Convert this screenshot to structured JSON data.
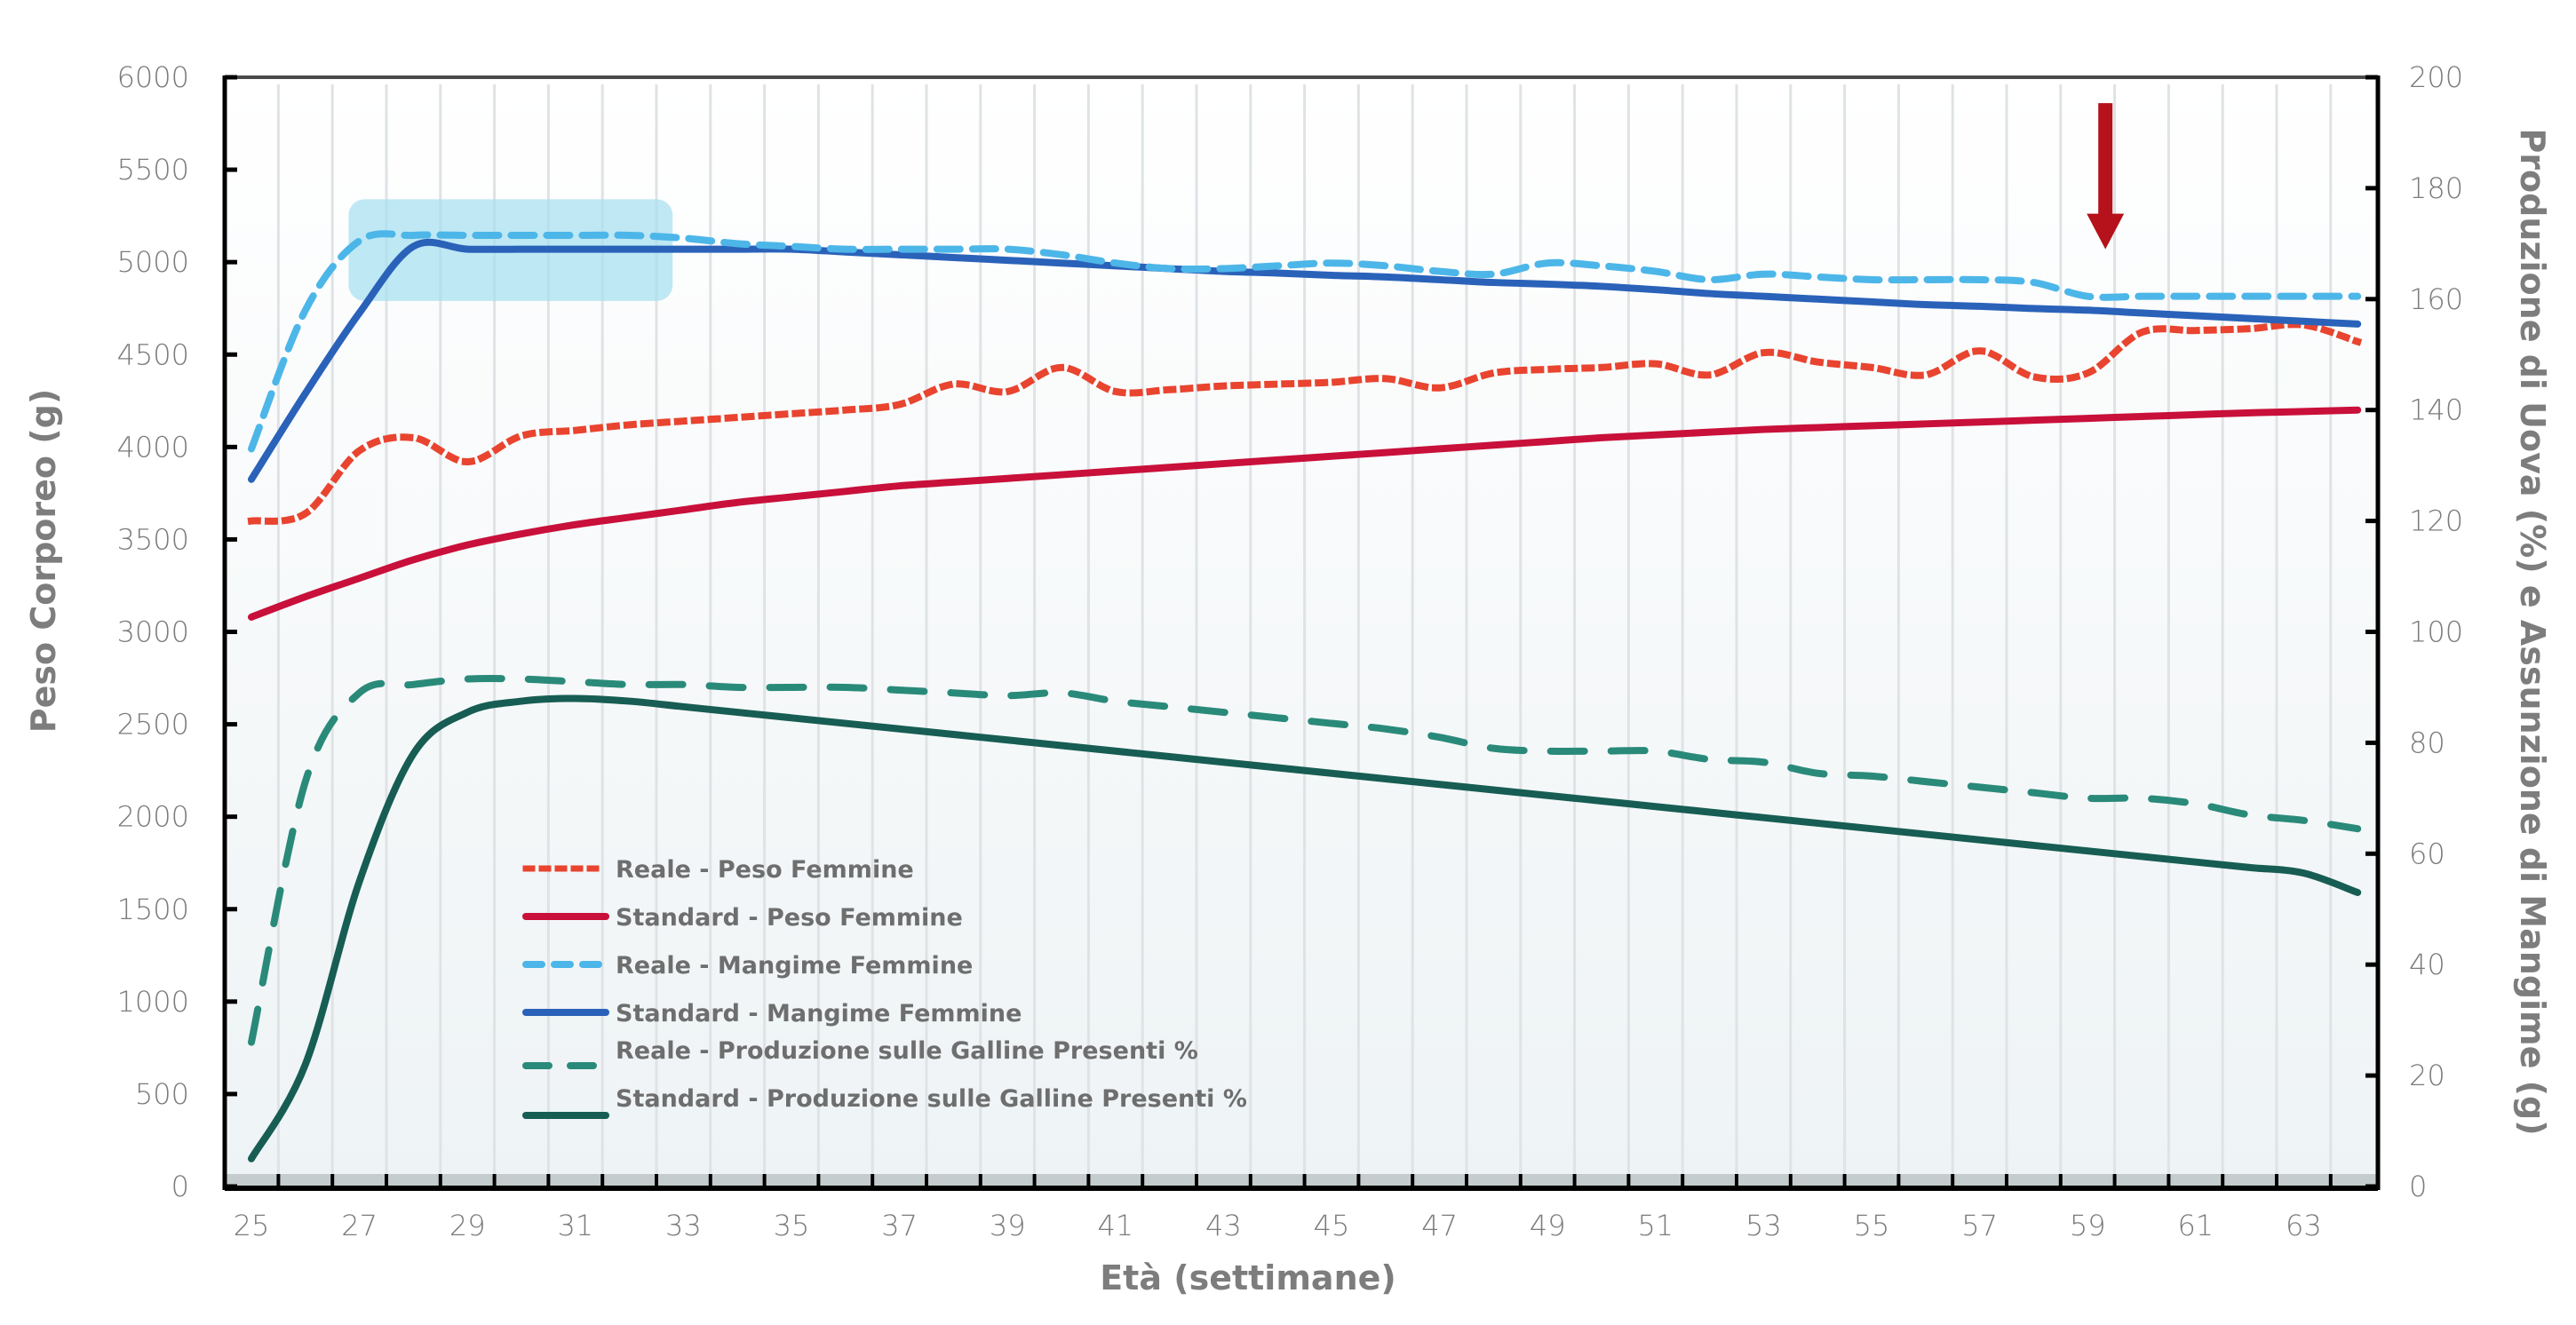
{
  "chart_data": {
    "type": "line",
    "title": "",
    "xlabel": "Età (settimane)",
    "ylabel_left": "Peso Corporeo (g)",
    "ylabel_right": "Produzione di Uova (%) e Assunzione di Mangime (g)",
    "xlim": [
      24.5,
      65
    ],
    "ylim_left": [
      0,
      6000
    ],
    "ylim_right": [
      0,
      200
    ],
    "x_ticks": [
      25,
      27,
      29,
      31,
      33,
      35,
      37,
      39,
      41,
      43,
      45,
      47,
      49,
      51,
      53,
      55,
      57,
      59,
      61,
      63
    ],
    "y_ticks_left": [
      0,
      500,
      1000,
      1500,
      2000,
      2500,
      3000,
      3500,
      4000,
      4500,
      5000,
      5500,
      6000
    ],
    "y_ticks_right": [
      0,
      20,
      40,
      60,
      80,
      100,
      120,
      140,
      160,
      180,
      200
    ],
    "grid": "vertical",
    "legend_position": "lower-left",
    "x": [
      25,
      26,
      27,
      28,
      29,
      30,
      31,
      32,
      33,
      34,
      35,
      36,
      37,
      38,
      39,
      40,
      41,
      42,
      43,
      44,
      45,
      46,
      47,
      48,
      49,
      50,
      51,
      52,
      53,
      54,
      55,
      56,
      57,
      58,
      59,
      60,
      61,
      62,
      63,
      64
    ],
    "series": [
      {
        "name": "Reale - Peso Femmine",
        "axis": "left",
        "style": "dotted",
        "color": "#e8442f",
        "values": [
          3600,
          3640,
          3980,
          4050,
          3920,
          4060,
          4090,
          4120,
          4140,
          4160,
          4180,
          4200,
          4230,
          4340,
          4300,
          4430,
          4300,
          4310,
          4330,
          4340,
          4350,
          4370,
          4320,
          4400,
          4420,
          4430,
          4450,
          4390,
          4510,
          4460,
          4430,
          4390,
          4520,
          4380,
          4400,
          4620,
          4630,
          4640,
          4660,
          4570
        ]
      },
      {
        "name": "Standard - Peso Femmine",
        "axis": "left",
        "style": "solid",
        "color": "#c8103a",
        "values": [
          3080,
          3190,
          3290,
          3390,
          3470,
          3530,
          3580,
          3620,
          3660,
          3700,
          3730,
          3760,
          3790,
          3810,
          3830,
          3850,
          3870,
          3890,
          3910,
          3930,
          3950,
          3970,
          3990,
          4010,
          4030,
          4050,
          4065,
          4080,
          4095,
          4105,
          4115,
          4125,
          4135,
          4145,
          4155,
          4165,
          4175,
          4185,
          4192,
          4200
        ]
      },
      {
        "name": "Reale - Mangime Femmine",
        "axis": "right",
        "style": "dashed",
        "color": "#4db6e8",
        "values": [
          133,
          158,
          170.5,
          171.5,
          171.5,
          171.5,
          171.5,
          171.5,
          171,
          170,
          169.5,
          169,
          169,
          169,
          169,
          168,
          166.5,
          165.5,
          165.5,
          166,
          166.5,
          166,
          165,
          164.5,
          166.5,
          166,
          165,
          163.5,
          164.5,
          164,
          163.5,
          163.5,
          163.5,
          163,
          160.5,
          160.5,
          160.5,
          160.5,
          160.5,
          160.5
        ]
      },
      {
        "name": "Standard - Mangime Femmine",
        "axis": "right",
        "style": "solid",
        "color": "#2a62b9",
        "values": [
          127.5,
          143,
          157.5,
          169.5,
          169,
          169,
          169,
          169,
          169,
          169,
          169,
          168.5,
          168,
          167.5,
          167,
          166.5,
          166,
          165.5,
          165,
          164.7,
          164.3,
          164,
          163.5,
          163,
          162.7,
          162.3,
          161.7,
          161,
          160.5,
          160,
          159.5,
          159,
          158.7,
          158.3,
          158,
          157.5,
          157,
          156.5,
          156,
          155.5
        ]
      },
      {
        "name": "Reale - Produzione sulle Galline Presenti %",
        "axis": "right",
        "style": "longdash",
        "color": "#2a8a7a",
        "values": [
          26,
          73,
          89,
          90.5,
          91.5,
          91.5,
          91,
          90.5,
          90.5,
          90,
          90,
          90,
          89.5,
          89,
          88.5,
          89,
          87.5,
          86.5,
          85.5,
          84.5,
          83.5,
          82.5,
          81,
          79,
          78.5,
          78.5,
          78.5,
          77,
          76.5,
          74.5,
          74,
          73,
          72,
          71,
          70,
          70,
          69,
          67,
          66,
          64.5
        ]
      },
      {
        "name": "Standard - Produzione sulle Galline Presenti %",
        "axis": "right",
        "style": "solid",
        "color": "#175d54",
        "values": [
          5,
          22,
          55,
          78,
          85.5,
          87.5,
          88,
          87.5,
          86.5,
          85.5,
          84.5,
          83.5,
          82.5,
          81.5,
          80.5,
          79.5,
          78.5,
          77.5,
          76.5,
          75.5,
          74.5,
          73.5,
          72.5,
          71.5,
          70.5,
          69.5,
          68.5,
          67.5,
          66.5,
          65.5,
          64.5,
          63.5,
          62.5,
          61.5,
          60.5,
          59.5,
          58.5,
          57.5,
          56.5,
          53
        ]
      }
    ],
    "annotations": [
      {
        "type": "highlight-box",
        "x_range": [
          26.8,
          32.8
        ],
        "y_range_left": [
          4790,
          5340
        ],
        "color": "#a6dff0"
      },
      {
        "type": "arrow-down",
        "x": 59,
        "y_left_from": 5860,
        "y_left_to": 5070,
        "color": "#b5121b"
      }
    ]
  }
}
